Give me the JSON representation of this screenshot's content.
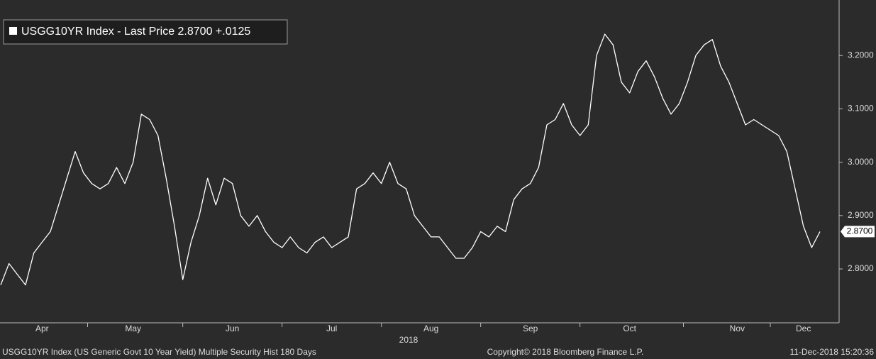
{
  "chart_data": {
    "type": "line",
    "title": "USGG10YR Index - Last Price 2.8700  +.0125",
    "x_annotation": "2018",
    "footer_left": "USGG10YR Index (US Generic Govt 10 Year Yield) Multiple Security Hist   180 Days",
    "footer_center": "Copyright© 2018 Bloomberg Finance L.P.",
    "footer_right": "11-Dec-2018 15:20:36",
    "categories": [
      null,
      null,
      null,
      null,
      null,
      "Apr",
      null,
      null,
      null,
      null,
      null,
      null,
      null,
      null,
      null,
      null,
      "May",
      null,
      null,
      null,
      null,
      null,
      null,
      null,
      null,
      null,
      null,
      null,
      "Jun",
      null,
      null,
      null,
      null,
      null,
      null,
      null,
      null,
      null,
      null,
      null,
      "Jul",
      null,
      null,
      null,
      null,
      null,
      null,
      null,
      null,
      null,
      null,
      null,
      "Aug",
      null,
      null,
      null,
      null,
      null,
      null,
      null,
      null,
      null,
      null,
      null,
      "Sep",
      null,
      null,
      null,
      null,
      null,
      null,
      null,
      null,
      null,
      null,
      null,
      "Oct",
      null,
      null,
      null,
      null,
      null,
      null,
      null,
      null,
      null,
      null,
      null,
      null,
      "Nov",
      null,
      null,
      null,
      null,
      null,
      null,
      null,
      "Dec",
      null,
      null
    ],
    "series": [
      {
        "name": "USGG10YR Index",
        "color": "#ffffff",
        "values": [
          2.77,
          2.81,
          2.79,
          2.77,
          2.83,
          2.85,
          2.87,
          2.92,
          2.97,
          3.02,
          2.98,
          2.96,
          2.95,
          2.96,
          2.99,
          2.96,
          3.0,
          3.09,
          3.08,
          3.05,
          2.97,
          2.88,
          2.78,
          2.85,
          2.9,
          2.97,
          2.92,
          2.97,
          2.96,
          2.9,
          2.88,
          2.9,
          2.87,
          2.85,
          2.84,
          2.86,
          2.84,
          2.83,
          2.85,
          2.86,
          2.84,
          2.85,
          2.86,
          2.95,
          2.96,
          2.98,
          2.96,
          3.0,
          2.96,
          2.95,
          2.9,
          2.88,
          2.86,
          2.86,
          2.84,
          2.82,
          2.82,
          2.84,
          2.87,
          2.86,
          2.88,
          2.87,
          2.93,
          2.95,
          2.96,
          2.99,
          3.07,
          3.08,
          3.11,
          3.07,
          3.05,
          3.07,
          3.2,
          3.24,
          3.22,
          3.15,
          3.13,
          3.17,
          3.19,
          3.16,
          3.12,
          3.09,
          3.11,
          3.15,
          3.2,
          3.22,
          3.23,
          3.18,
          3.15,
          3.11,
          3.07,
          3.08,
          3.07,
          3.06,
          3.05,
          3.02,
          2.95,
          2.88,
          2.84,
          2.87
        ]
      }
    ],
    "last_price": {
      "value": 2.87,
      "label": "2.8700"
    },
    "ylim": [
      2.699,
      3.304
    ],
    "yticks": [
      {
        "value": 2.8,
        "label": "2.8000"
      },
      {
        "value": 2.9,
        "label": "2.9000"
      },
      {
        "value": 3.0,
        "label": "3.0000"
      },
      {
        "value": 3.1,
        "label": "3.1000"
      },
      {
        "value": 3.2,
        "label": "3.2000"
      }
    ],
    "y_axis_side": "right"
  }
}
